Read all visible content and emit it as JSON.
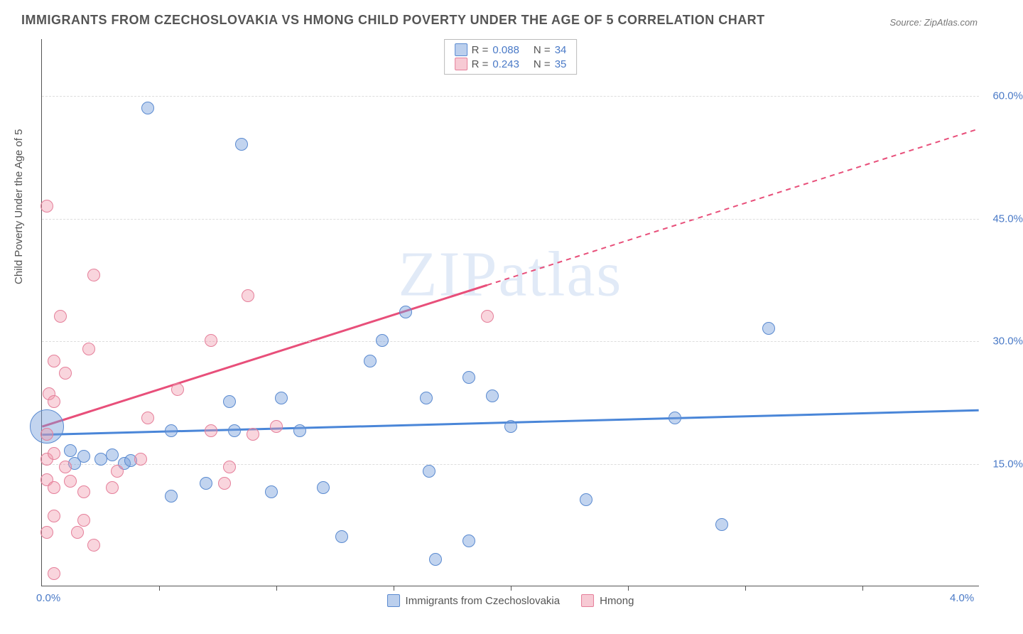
{
  "title": "IMMIGRANTS FROM CZECHOSLOVAKIA VS HMONG CHILD POVERTY UNDER THE AGE OF 5 CORRELATION CHART",
  "source": "Source: ZipAtlas.com",
  "watermark": "ZIPatlas",
  "y_axis_title": "Child Poverty Under the Age of 5",
  "chart": {
    "type": "scatter",
    "xlim": [
      0.0,
      4.0
    ],
    "ylim": [
      0.0,
      67.0
    ],
    "x_ticks": [
      0.0,
      4.0
    ],
    "x_tick_labels": [
      "0.0%",
      "4.0%"
    ],
    "x_minor_ticks_pct": [
      12.5,
      25,
      37.5,
      50,
      62.5,
      75,
      87.5
    ],
    "y_ticks": [
      15.0,
      30.0,
      45.0,
      60.0
    ],
    "y_tick_labels": [
      "15.0%",
      "30.0%",
      "45.0%",
      "60.0%"
    ],
    "background": "#ffffff",
    "grid_color": "#dddddd",
    "axis_color": "#555555",
    "label_color": "#4a7ac7",
    "series": [
      {
        "name": "Immigrants from Czechoslovakia",
        "color_fill": "rgba(120,160,220,0.45)",
        "color_stroke": "#5a8ad0",
        "R": "0.088",
        "N": "34",
        "marker_radius": 9,
        "trend": {
          "x1": 0.0,
          "y1": 18.5,
          "x2": 4.0,
          "y2": 21.5,
          "solid_until_x": 4.0,
          "stroke": "#4a86d8",
          "width": 3
        },
        "points": [
          {
            "x": 0.02,
            "y": 19.5,
            "r": 24
          },
          {
            "x": 0.45,
            "y": 58.5,
            "r": 9
          },
          {
            "x": 0.85,
            "y": 54.0,
            "r": 9
          },
          {
            "x": 1.55,
            "y": 33.5,
            "r": 9
          },
          {
            "x": 1.45,
            "y": 30.0,
            "r": 9
          },
          {
            "x": 1.4,
            "y": 27.5,
            "r": 9
          },
          {
            "x": 1.82,
            "y": 25.5,
            "r": 9
          },
          {
            "x": 1.64,
            "y": 23.0,
            "r": 9
          },
          {
            "x": 1.92,
            "y": 23.2,
            "r": 9
          },
          {
            "x": 2.0,
            "y": 19.5,
            "r": 9
          },
          {
            "x": 2.7,
            "y": 20.5,
            "r": 9
          },
          {
            "x": 3.1,
            "y": 31.5,
            "r": 9
          },
          {
            "x": 2.32,
            "y": 10.5,
            "r": 9
          },
          {
            "x": 2.9,
            "y": 7.5,
            "r": 9
          },
          {
            "x": 1.82,
            "y": 5.5,
            "r": 9
          },
          {
            "x": 1.68,
            "y": 3.2,
            "r": 9
          },
          {
            "x": 1.65,
            "y": 14.0,
            "r": 9
          },
          {
            "x": 1.28,
            "y": 6.0,
            "r": 9
          },
          {
            "x": 1.2,
            "y": 12.0,
            "r": 9
          },
          {
            "x": 1.1,
            "y": 19.0,
            "r": 9
          },
          {
            "x": 0.98,
            "y": 11.5,
            "r": 9
          },
          {
            "x": 1.02,
            "y": 23.0,
            "r": 9
          },
          {
            "x": 0.8,
            "y": 22.5,
            "r": 9
          },
          {
            "x": 0.82,
            "y": 19.0,
            "r": 9
          },
          {
            "x": 0.7,
            "y": 12.5,
            "r": 9
          },
          {
            "x": 0.55,
            "y": 19.0,
            "r": 9
          },
          {
            "x": 0.55,
            "y": 11.0,
            "r": 9
          },
          {
            "x": 0.35,
            "y": 15.0,
            "r": 9
          },
          {
            "x": 0.3,
            "y": 16.0,
            "r": 9
          },
          {
            "x": 0.25,
            "y": 15.5,
            "r": 9
          },
          {
            "x": 0.38,
            "y": 15.3,
            "r": 9
          },
          {
            "x": 0.18,
            "y": 15.8,
            "r": 9
          },
          {
            "x": 0.12,
            "y": 16.5,
            "r": 9
          },
          {
            "x": 0.14,
            "y": 15.0,
            "r": 9
          }
        ]
      },
      {
        "name": "Hmong",
        "color_fill": "rgba(240,150,170,0.4)",
        "color_stroke": "#e57f9a",
        "R": "0.243",
        "N": "35",
        "marker_radius": 9,
        "trend": {
          "x1": 0.0,
          "y1": 19.5,
          "x2": 4.0,
          "y2": 56.0,
          "solid_until_x": 1.9,
          "stroke": "#e84f7a",
          "width": 3
        },
        "points": [
          {
            "x": 0.02,
            "y": 46.5,
            "r": 9
          },
          {
            "x": 0.22,
            "y": 38.0,
            "r": 9
          },
          {
            "x": 0.08,
            "y": 33.0,
            "r": 9
          },
          {
            "x": 0.88,
            "y": 35.5,
            "r": 9
          },
          {
            "x": 0.72,
            "y": 30.0,
            "r": 9
          },
          {
            "x": 0.05,
            "y": 27.5,
            "r": 9
          },
          {
            "x": 0.1,
            "y": 26.0,
            "r": 9
          },
          {
            "x": 0.03,
            "y": 23.5,
            "r": 9
          },
          {
            "x": 0.05,
            "y": 22.5,
            "r": 9
          },
          {
            "x": 0.2,
            "y": 29.0,
            "r": 9
          },
          {
            "x": 0.58,
            "y": 24.0,
            "r": 9
          },
          {
            "x": 0.45,
            "y": 20.5,
            "r": 9
          },
          {
            "x": 0.72,
            "y": 19.0,
            "r": 9
          },
          {
            "x": 0.9,
            "y": 18.5,
            "r": 9
          },
          {
            "x": 0.02,
            "y": 18.5,
            "r": 9
          },
          {
            "x": 0.02,
            "y": 15.5,
            "r": 9
          },
          {
            "x": 0.05,
            "y": 16.2,
            "r": 9
          },
          {
            "x": 0.1,
            "y": 14.5,
            "r": 9
          },
          {
            "x": 0.02,
            "y": 13.0,
            "r": 9
          },
          {
            "x": 0.12,
            "y": 12.8,
            "r": 9
          },
          {
            "x": 0.18,
            "y": 11.5,
            "r": 9
          },
          {
            "x": 0.3,
            "y": 12.0,
            "r": 9
          },
          {
            "x": 0.32,
            "y": 14.0,
            "r": 9
          },
          {
            "x": 0.05,
            "y": 12.0,
            "r": 9
          },
          {
            "x": 0.05,
            "y": 8.5,
            "r": 9
          },
          {
            "x": 0.18,
            "y": 8.0,
            "r": 9
          },
          {
            "x": 0.02,
            "y": 6.5,
            "r": 9
          },
          {
            "x": 0.15,
            "y": 6.5,
            "r": 9
          },
          {
            "x": 0.22,
            "y": 5.0,
            "r": 9
          },
          {
            "x": 0.05,
            "y": 1.5,
            "r": 9
          },
          {
            "x": 0.8,
            "y": 14.5,
            "r": 9
          },
          {
            "x": 0.78,
            "y": 12.5,
            "r": 9
          },
          {
            "x": 1.0,
            "y": 19.5,
            "r": 9
          },
          {
            "x": 1.9,
            "y": 33.0,
            "r": 9
          },
          {
            "x": 0.42,
            "y": 15.5,
            "r": 9
          }
        ]
      }
    ],
    "legend_bottom": [
      {
        "swatch": "blue",
        "label": "Immigrants from Czechoslovakia"
      },
      {
        "swatch": "pink",
        "label": "Hmong"
      }
    ]
  }
}
